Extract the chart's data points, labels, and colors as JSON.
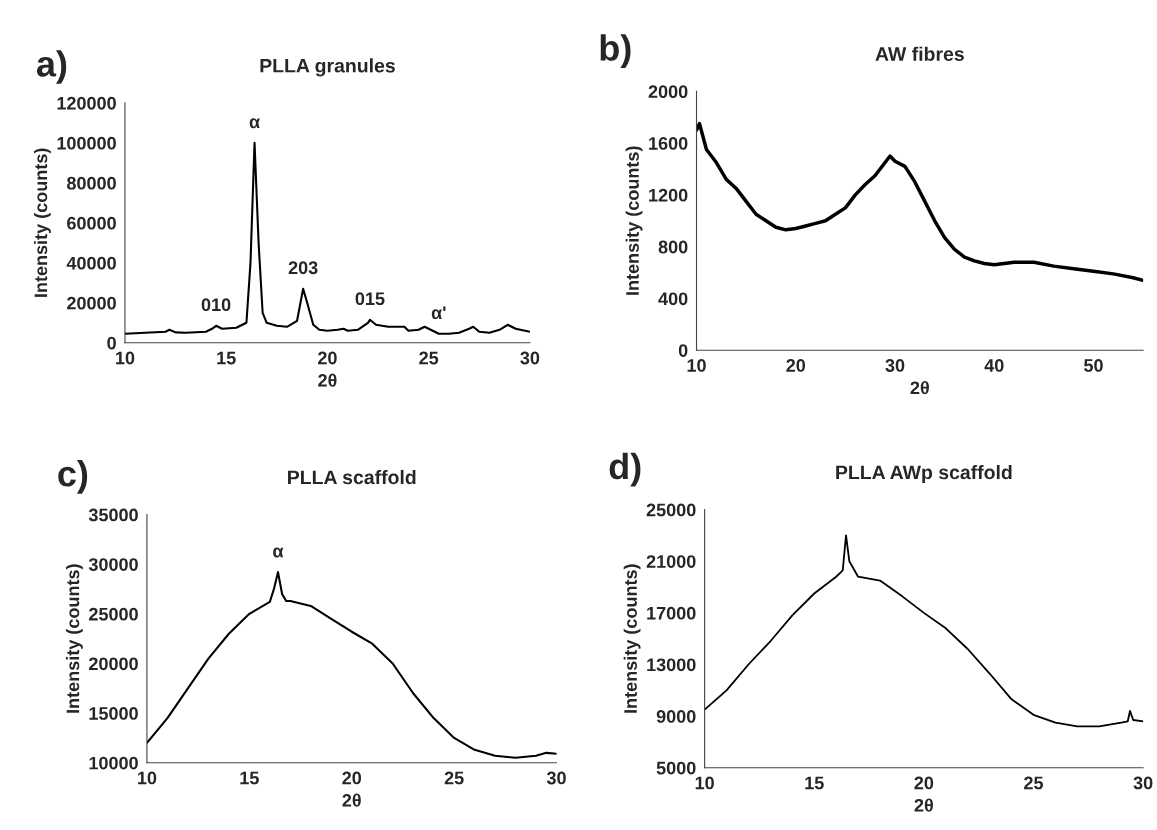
{
  "chart_data": [
    {
      "type": "line",
      "title": "PLLA granules",
      "xlabel": "2θ",
      "ylabel": "Intensity (counts)",
      "xlim": [
        10,
        30
      ],
      "xticks": [
        10,
        15,
        20,
        25,
        30
      ],
      "ylim": [
        0,
        120000
      ],
      "yticks": [
        0,
        20000,
        40000,
        60000,
        80000,
        100000,
        120000
      ],
      "grid": false,
      "legend": false,
      "marker": "none",
      "line_style": "solid",
      "series": [
        {
          "color": "#000000",
          "x": [
            10,
            11,
            12,
            12.2,
            12.5,
            13,
            14,
            14.3,
            14.5,
            14.8,
            15.5,
            16,
            16.2,
            16.4,
            16.6,
            16.8,
            17,
            17.5,
            18,
            18.5,
            18.8,
            19,
            19.3,
            19.6,
            20,
            20.5,
            20.8,
            21,
            21.5,
            22,
            22.1,
            22.4,
            23,
            23.8,
            24,
            24.5,
            24.8,
            25.2,
            25.5,
            26,
            26.5,
            27,
            27.2,
            27.5,
            28,
            28.5,
            28.9,
            29.3,
            30
          ],
          "values": [
            4500,
            5000,
            5500,
            6500,
            5200,
            5000,
            5500,
            7000,
            8500,
            7000,
            7500,
            10000,
            40000,
            100000,
            50000,
            15000,
            10000,
            8500,
            8000,
            11000,
            27000,
            20000,
            9000,
            6500,
            6000,
            6500,
            7000,
            6000,
            6500,
            10000,
            11500,
            9000,
            8000,
            8000,
            6000,
            6500,
            8000,
            6000,
            4500,
            4500,
            5000,
            7000,
            8000,
            5500,
            5000,
            6500,
            9000,
            7000,
            5500
          ]
        }
      ],
      "annotations": [
        "a)",
        {
          "text": "010",
          "x": 14.5,
          "y": 8500
        },
        {
          "text": "α",
          "x": 16.4,
          "y": 100000
        },
        {
          "text": "203",
          "x": 18.8,
          "y": 27000
        },
        {
          "text": "015",
          "x": 22.1,
          "y": 11500
        },
        {
          "text": "α'",
          "x": 25.5,
          "y": 4500
        }
      ]
    },
    {
      "type": "line",
      "title": "AW fibres",
      "xlabel": "2θ",
      "ylabel": "Intensity (counts)",
      "xlim": [
        10,
        55
      ],
      "xticks": [
        10,
        20,
        30,
        40,
        50
      ],
      "ylim": [
        0,
        2000
      ],
      "yticks": [
        0,
        400,
        800,
        1200,
        1600,
        2000
      ],
      "grid": false,
      "legend": false,
      "marker": "none",
      "line_style": "solid",
      "series": [
        {
          "color": "#000000",
          "x": [
            10,
            10.3,
            11,
            12,
            13,
            14,
            15,
            16,
            17,
            18,
            19,
            20,
            21,
            22,
            23,
            24,
            25,
            26,
            27,
            28,
            29,
            29.5,
            30,
            31,
            32,
            33,
            34,
            35,
            36,
            37,
            38,
            39,
            40,
            42,
            44,
            46,
            48,
            50,
            52,
            54,
            55
          ],
          "values": [
            1700,
            1750,
            1550,
            1450,
            1320,
            1250,
            1150,
            1050,
            1000,
            950,
            930,
            940,
            960,
            980,
            1000,
            1050,
            1100,
            1200,
            1280,
            1350,
            1450,
            1500,
            1460,
            1420,
            1300,
            1150,
            1000,
            870,
            780,
            720,
            690,
            670,
            660,
            680,
            680,
            650,
            630,
            610,
            590,
            560,
            540
          ]
        }
      ],
      "annotations": [
        "b)"
      ]
    },
    {
      "type": "line",
      "title": "PLLA scaffold",
      "xlabel": "2θ",
      "ylabel": "Intensity (counts)",
      "xlim": [
        10,
        30
      ],
      "xticks": [
        10,
        15,
        20,
        25,
        30
      ],
      "ylim": [
        10000,
        35000
      ],
      "yticks": [
        10000,
        15000,
        20000,
        25000,
        30000,
        35000
      ],
      "grid": false,
      "legend": false,
      "marker": "none",
      "line_style": "solid",
      "series": [
        {
          "color": "#000000",
          "x": [
            10,
            11,
            12,
            13,
            14,
            15,
            16,
            16.2,
            16.4,
            16.6,
            16.8,
            17,
            18,
            19,
            20,
            21,
            22,
            23,
            24,
            25,
            26,
            27,
            28,
            29,
            29.5,
            30
          ],
          "values": [
            12000,
            14500,
            17500,
            20500,
            23000,
            25000,
            26200,
            27500,
            29200,
            27000,
            26300,
            26300,
            25800,
            24500,
            23200,
            22000,
            20000,
            17000,
            14500,
            12500,
            11300,
            10700,
            10500,
            10700,
            11000,
            10900
          ]
        }
      ],
      "annotations": [
        "c)",
        {
          "text": "α",
          "x": 16.4,
          "y": 29200
        }
      ]
    },
    {
      "type": "line",
      "title": "PLLA AWp scaffold",
      "xlabel": "2θ",
      "ylabel": "Intensity (counts)",
      "xlim": [
        10,
        30
      ],
      "xticks": [
        10,
        15,
        20,
        25,
        30
      ],
      "ylim": [
        5000,
        25000
      ],
      "yticks": [
        5000,
        9000,
        13000,
        17000,
        21000,
        25000
      ],
      "grid": false,
      "legend": false,
      "marker": "none",
      "line_style": "solid",
      "series": [
        {
          "color": "#000000",
          "x": [
            10,
            11,
            12,
            13,
            14,
            15,
            16,
            16.3,
            16.45,
            16.6,
            17,
            18,
            19,
            20,
            21,
            22,
            23,
            24,
            25,
            26,
            27,
            28,
            29,
            29.3,
            29.4,
            29.55,
            30
          ],
          "values": [
            9500,
            11000,
            13000,
            14800,
            16800,
            18500,
            19800,
            20300,
            23000,
            21000,
            19800,
            19500,
            18300,
            17000,
            15800,
            14200,
            12300,
            10300,
            9100,
            8500,
            8200,
            8200,
            8500,
            8600,
            9400,
            8700,
            8600
          ]
        }
      ],
      "annotations": [
        "d)"
      ]
    }
  ]
}
